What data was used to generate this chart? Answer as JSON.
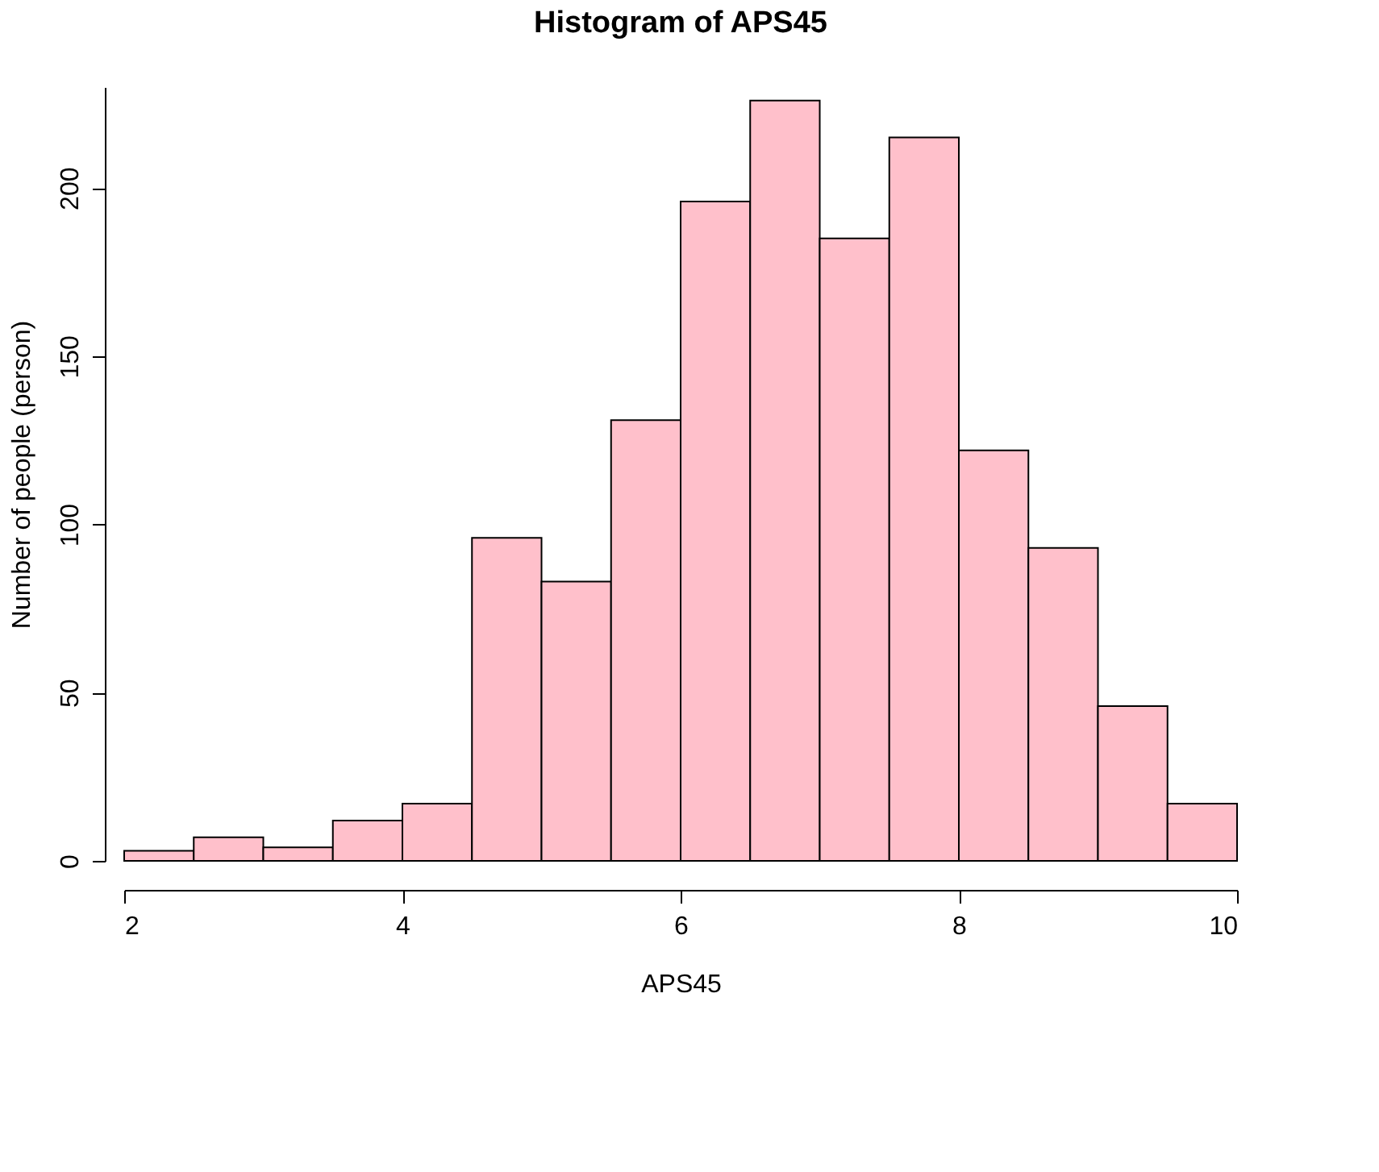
{
  "chart_data": {
    "type": "histogram",
    "title": "Histogram of APS45",
    "xlabel": "APS45",
    "ylabel": "Number of people (person)",
    "bins": [
      2,
      2.5,
      3,
      3.5,
      4,
      4.5,
      5,
      5.5,
      6,
      6.5,
      7,
      7.5,
      8,
      8.5,
      9,
      9.5,
      10
    ],
    "values": [
      3,
      7,
      4,
      12,
      17,
      96,
      83,
      131,
      196,
      226,
      185,
      215,
      122,
      93,
      46,
      17
    ],
    "color": "#ffc0cb",
    "xlim": [
      2,
      10
    ],
    "xticks": [
      2,
      4,
      6,
      8,
      10
    ],
    "ylim": [
      0,
      230
    ],
    "yticks": [
      0,
      50,
      100,
      150,
      200
    ],
    "grid": false
  }
}
